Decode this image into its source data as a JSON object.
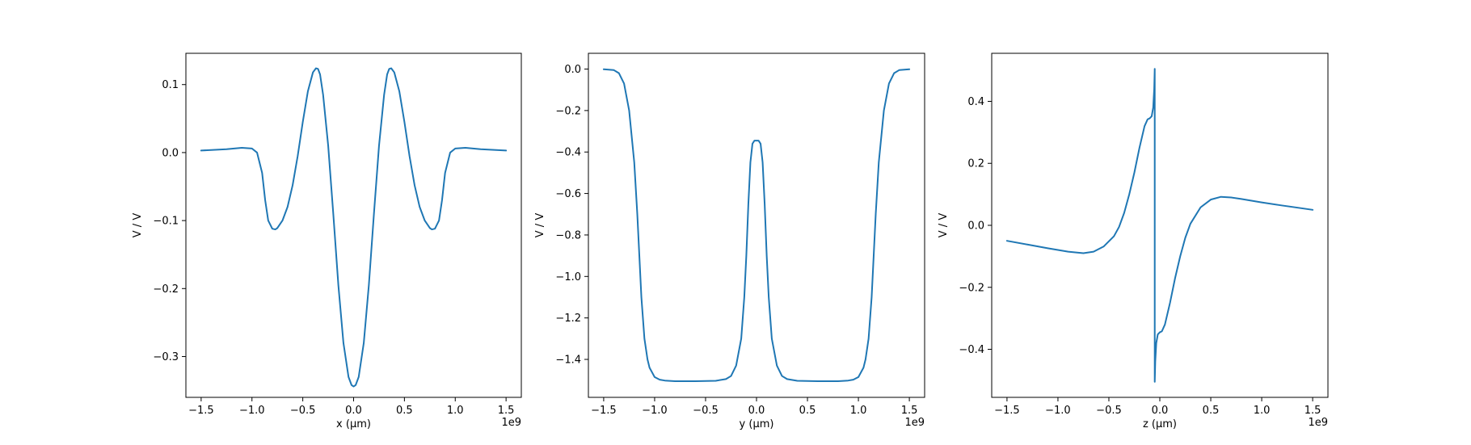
{
  "figure": {
    "background": "#ffffff",
    "line_color": "#1f77b4"
  },
  "chart_data": [
    {
      "type": "line",
      "title": "",
      "xlabel": "x (µm)",
      "ylabel": "V / V",
      "offset_text": "1e9",
      "xlim": [
        -1.65,
        1.65
      ],
      "ylim": [
        -0.36,
        0.146
      ],
      "xticks": [
        -1.5,
        -1.0,
        -0.5,
        0.0,
        0.5,
        1.0,
        1.5
      ],
      "xtick_labels": [
        "−1.5",
        "−1.0",
        "−0.5",
        "0.0",
        "0.5",
        "1.0",
        "1.5"
      ],
      "yticks": [
        0.1,
        0.0,
        -0.1,
        -0.2,
        -0.3
      ],
      "ytick_labels": [
        "0.1",
        "0.0",
        "−0.1",
        "−0.2",
        "−0.3"
      ],
      "grid": false,
      "series": [
        {
          "x": [
            -1.5,
            -1.25,
            -1.1,
            -1.0,
            -0.95,
            -0.9,
            -0.87,
            -0.84,
            -0.8,
            -0.77,
            -0.75,
            -0.7,
            -0.65,
            -0.6,
            -0.55,
            -0.5,
            -0.45,
            -0.4,
            -0.37,
            -0.35,
            -0.33,
            -0.3,
            -0.25,
            -0.2,
            -0.15,
            -0.1,
            -0.05,
            -0.02,
            0.0,
            0.02,
            0.05,
            0.1,
            0.15,
            0.2,
            0.25,
            0.3,
            0.33,
            0.35,
            0.37,
            0.4,
            0.45,
            0.5,
            0.55,
            0.6,
            0.65,
            0.7,
            0.75,
            0.77,
            0.8,
            0.84,
            0.87,
            0.9,
            0.95,
            1.0,
            1.1,
            1.25,
            1.5
          ],
          "y": [
            0.003,
            0.005,
            0.007,
            0.006,
            0.0,
            -0.03,
            -0.07,
            -0.1,
            -0.112,
            -0.113,
            -0.111,
            -0.1,
            -0.08,
            -0.048,
            -0.005,
            0.045,
            0.09,
            0.118,
            0.124,
            0.123,
            0.115,
            0.085,
            0.01,
            -0.09,
            -0.195,
            -0.28,
            -0.33,
            -0.342,
            -0.344,
            -0.342,
            -0.33,
            -0.28,
            -0.195,
            -0.09,
            0.01,
            0.085,
            0.115,
            0.123,
            0.124,
            0.118,
            0.09,
            0.045,
            -0.005,
            -0.048,
            -0.08,
            -0.1,
            -0.111,
            -0.113,
            -0.112,
            -0.1,
            -0.07,
            -0.03,
            0.0,
            0.006,
            0.007,
            0.005,
            0.003
          ]
        }
      ]
    },
    {
      "type": "line",
      "title": "",
      "xlabel": "y (µm)",
      "ylabel": "V / V",
      "offset_text": "1e9",
      "xlim": [
        -1.65,
        1.65
      ],
      "ylim": [
        -1.583,
        0.076
      ],
      "xticks": [
        -1.5,
        -1.0,
        -0.5,
        0.0,
        0.5,
        1.0,
        1.5
      ],
      "xtick_labels": [
        "−1.5",
        "−1.0",
        "−0.5",
        "0.0",
        "0.5",
        "1.0",
        "1.5"
      ],
      "yticks": [
        0.0,
        -0.2,
        -0.4,
        -0.6,
        -0.8,
        -1.0,
        -1.2,
        -1.4
      ],
      "ytick_labels": [
        "0.0",
        "−0.2",
        "−0.4",
        "−0.6",
        "−0.8",
        "−1.0",
        "−1.2",
        "−1.4"
      ],
      "grid": false,
      "series": [
        {
          "x": [
            -1.5,
            -1.4,
            -1.35,
            -1.3,
            -1.25,
            -1.2,
            -1.17,
            -1.15,
            -1.13,
            -1.1,
            -1.07,
            -1.05,
            -1.0,
            -0.95,
            -0.9,
            -0.8,
            -0.6,
            -0.4,
            -0.3,
            -0.25,
            -0.2,
            -0.15,
            -0.12,
            -0.1,
            -0.08,
            -0.06,
            -0.04,
            -0.02,
            0.0,
            0.02,
            0.04,
            0.06,
            0.08,
            0.1,
            0.12,
            0.15,
            0.2,
            0.25,
            0.3,
            0.4,
            0.6,
            0.8,
            0.9,
            0.95,
            1.0,
            1.05,
            1.07,
            1.1,
            1.13,
            1.15,
            1.17,
            1.2,
            1.25,
            1.3,
            1.35,
            1.4,
            1.5
          ],
          "y": [
            -0.001,
            -0.005,
            -0.02,
            -0.07,
            -0.2,
            -0.45,
            -0.7,
            -0.9,
            -1.1,
            -1.3,
            -1.4,
            -1.44,
            -1.485,
            -1.498,
            -1.502,
            -1.505,
            -1.505,
            -1.503,
            -1.495,
            -1.48,
            -1.43,
            -1.3,
            -1.1,
            -0.9,
            -0.65,
            -0.45,
            -0.36,
            -0.345,
            -0.345,
            -0.345,
            -0.36,
            -0.45,
            -0.65,
            -0.9,
            -1.1,
            -1.3,
            -1.43,
            -1.48,
            -1.495,
            -1.503,
            -1.505,
            -1.505,
            -1.502,
            -1.498,
            -1.485,
            -1.44,
            -1.4,
            -1.3,
            -1.1,
            -0.9,
            -0.7,
            -0.45,
            -0.2,
            -0.07,
            -0.02,
            -0.005,
            -0.001
          ]
        }
      ]
    },
    {
      "type": "line",
      "title": "",
      "xlabel": "z (µm)",
      "ylabel": "V / V",
      "offset_text": "1e9",
      "xlim": [
        -1.65,
        1.65
      ],
      "ylim": [
        -0.555,
        0.555
      ],
      "xticks": [
        -1.5,
        -1.0,
        -0.5,
        0.0,
        0.5,
        1.0,
        1.5
      ],
      "xtick_labels": [
        "−1.5",
        "−1.0",
        "−0.5",
        "0.0",
        "0.5",
        "1.0",
        "1.5"
      ],
      "yticks": [
        0.4,
        0.2,
        0.0,
        -0.2,
        -0.4
      ],
      "ytick_labels": [
        "0.4",
        "0.2",
        "0.0",
        "−0.2",
        "−0.4"
      ],
      "grid": false,
      "series": [
        {
          "x": [
            -1.5,
            -1.3,
            -1.1,
            -0.9,
            -0.75,
            -0.65,
            -0.55,
            -0.45,
            -0.4,
            -0.35,
            -0.3,
            -0.25,
            -0.2,
            -0.15,
            -0.12,
            -0.1,
            -0.08,
            -0.065,
            -0.055,
            -0.05,
            -0.05,
            -0.045,
            -0.035,
            -0.02,
            0.0,
            0.02,
            0.05,
            0.1,
            0.15,
            0.2,
            0.25,
            0.3,
            0.4,
            0.5,
            0.6,
            0.7,
            0.8,
            1.0,
            1.2,
            1.5
          ],
          "y": [
            -0.05,
            -0.062,
            -0.074,
            -0.085,
            -0.09,
            -0.085,
            -0.068,
            -0.035,
            -0.005,
            0.04,
            0.1,
            0.17,
            0.25,
            0.32,
            0.342,
            0.345,
            0.352,
            0.38,
            0.44,
            0.505,
            -0.505,
            -0.44,
            -0.38,
            -0.352,
            -0.345,
            -0.342,
            -0.32,
            -0.25,
            -0.17,
            -0.1,
            -0.04,
            0.005,
            0.058,
            0.083,
            0.092,
            0.09,
            0.085,
            0.074,
            0.064,
            0.05
          ]
        }
      ]
    }
  ]
}
